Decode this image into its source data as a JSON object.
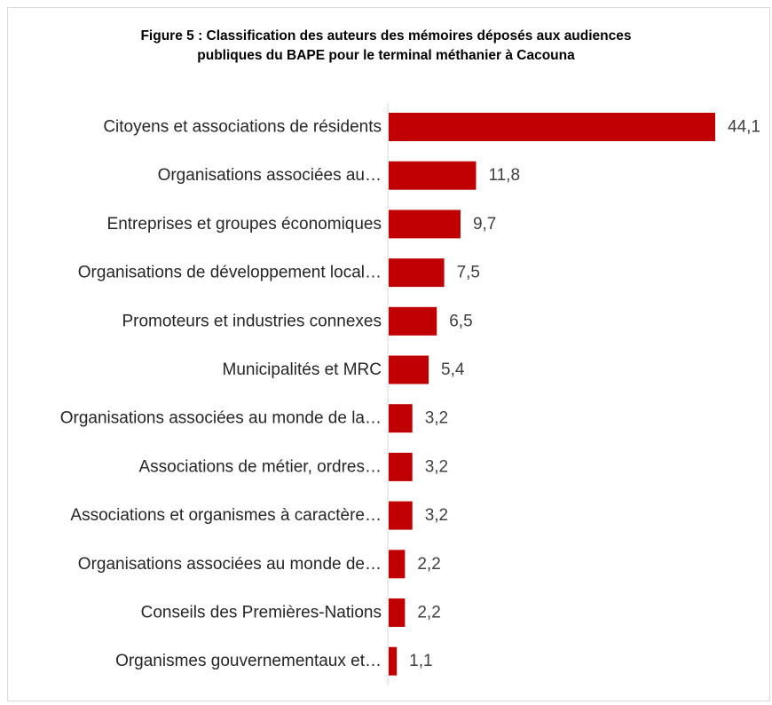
{
  "chart_data": {
    "type": "bar",
    "orientation": "horizontal",
    "title": "Figure 5 : Classification des auteurs des mémoires déposés aux audiences publiques du BAPE pour le terminal méthanier à Cacouna",
    "title_lines": [
      "Figure 5 : Classification des auteurs des mémoires déposés aux audiences",
      "publiques du BAPE pour le terminal méthanier à Cacouna"
    ],
    "categories": [
      "Citoyens et associations de résidents",
      "Organisations associées au…",
      "Entreprises et groupes économiques",
      "Organisations de développement local…",
      "Promoteurs et industries connexes",
      "Municipalités et MRC",
      "Organisations associées au monde de la…",
      "Associations de métier, ordres…",
      "Associations et organismes à caractère…",
      "Organisations associées au monde de…",
      "Conseils des Premières-Nations",
      "Organismes gouvernementaux et…"
    ],
    "values": [
      44.1,
      11.8,
      9.7,
      7.5,
      6.5,
      5.4,
      3.2,
      3.2,
      3.2,
      2.2,
      2.2,
      1.1
    ],
    "value_labels": [
      "44,1",
      "11,8",
      "9,7",
      "7,5",
      "6,5",
      "5,4",
      "3,2",
      "3,2",
      "3,2",
      "2,2",
      "2,2",
      "1,1"
    ],
    "xlabel": "",
    "ylabel": "",
    "xlim": [
      0,
      44.1
    ],
    "grid": false,
    "legend": "none",
    "bar_color": "#c00000"
  }
}
